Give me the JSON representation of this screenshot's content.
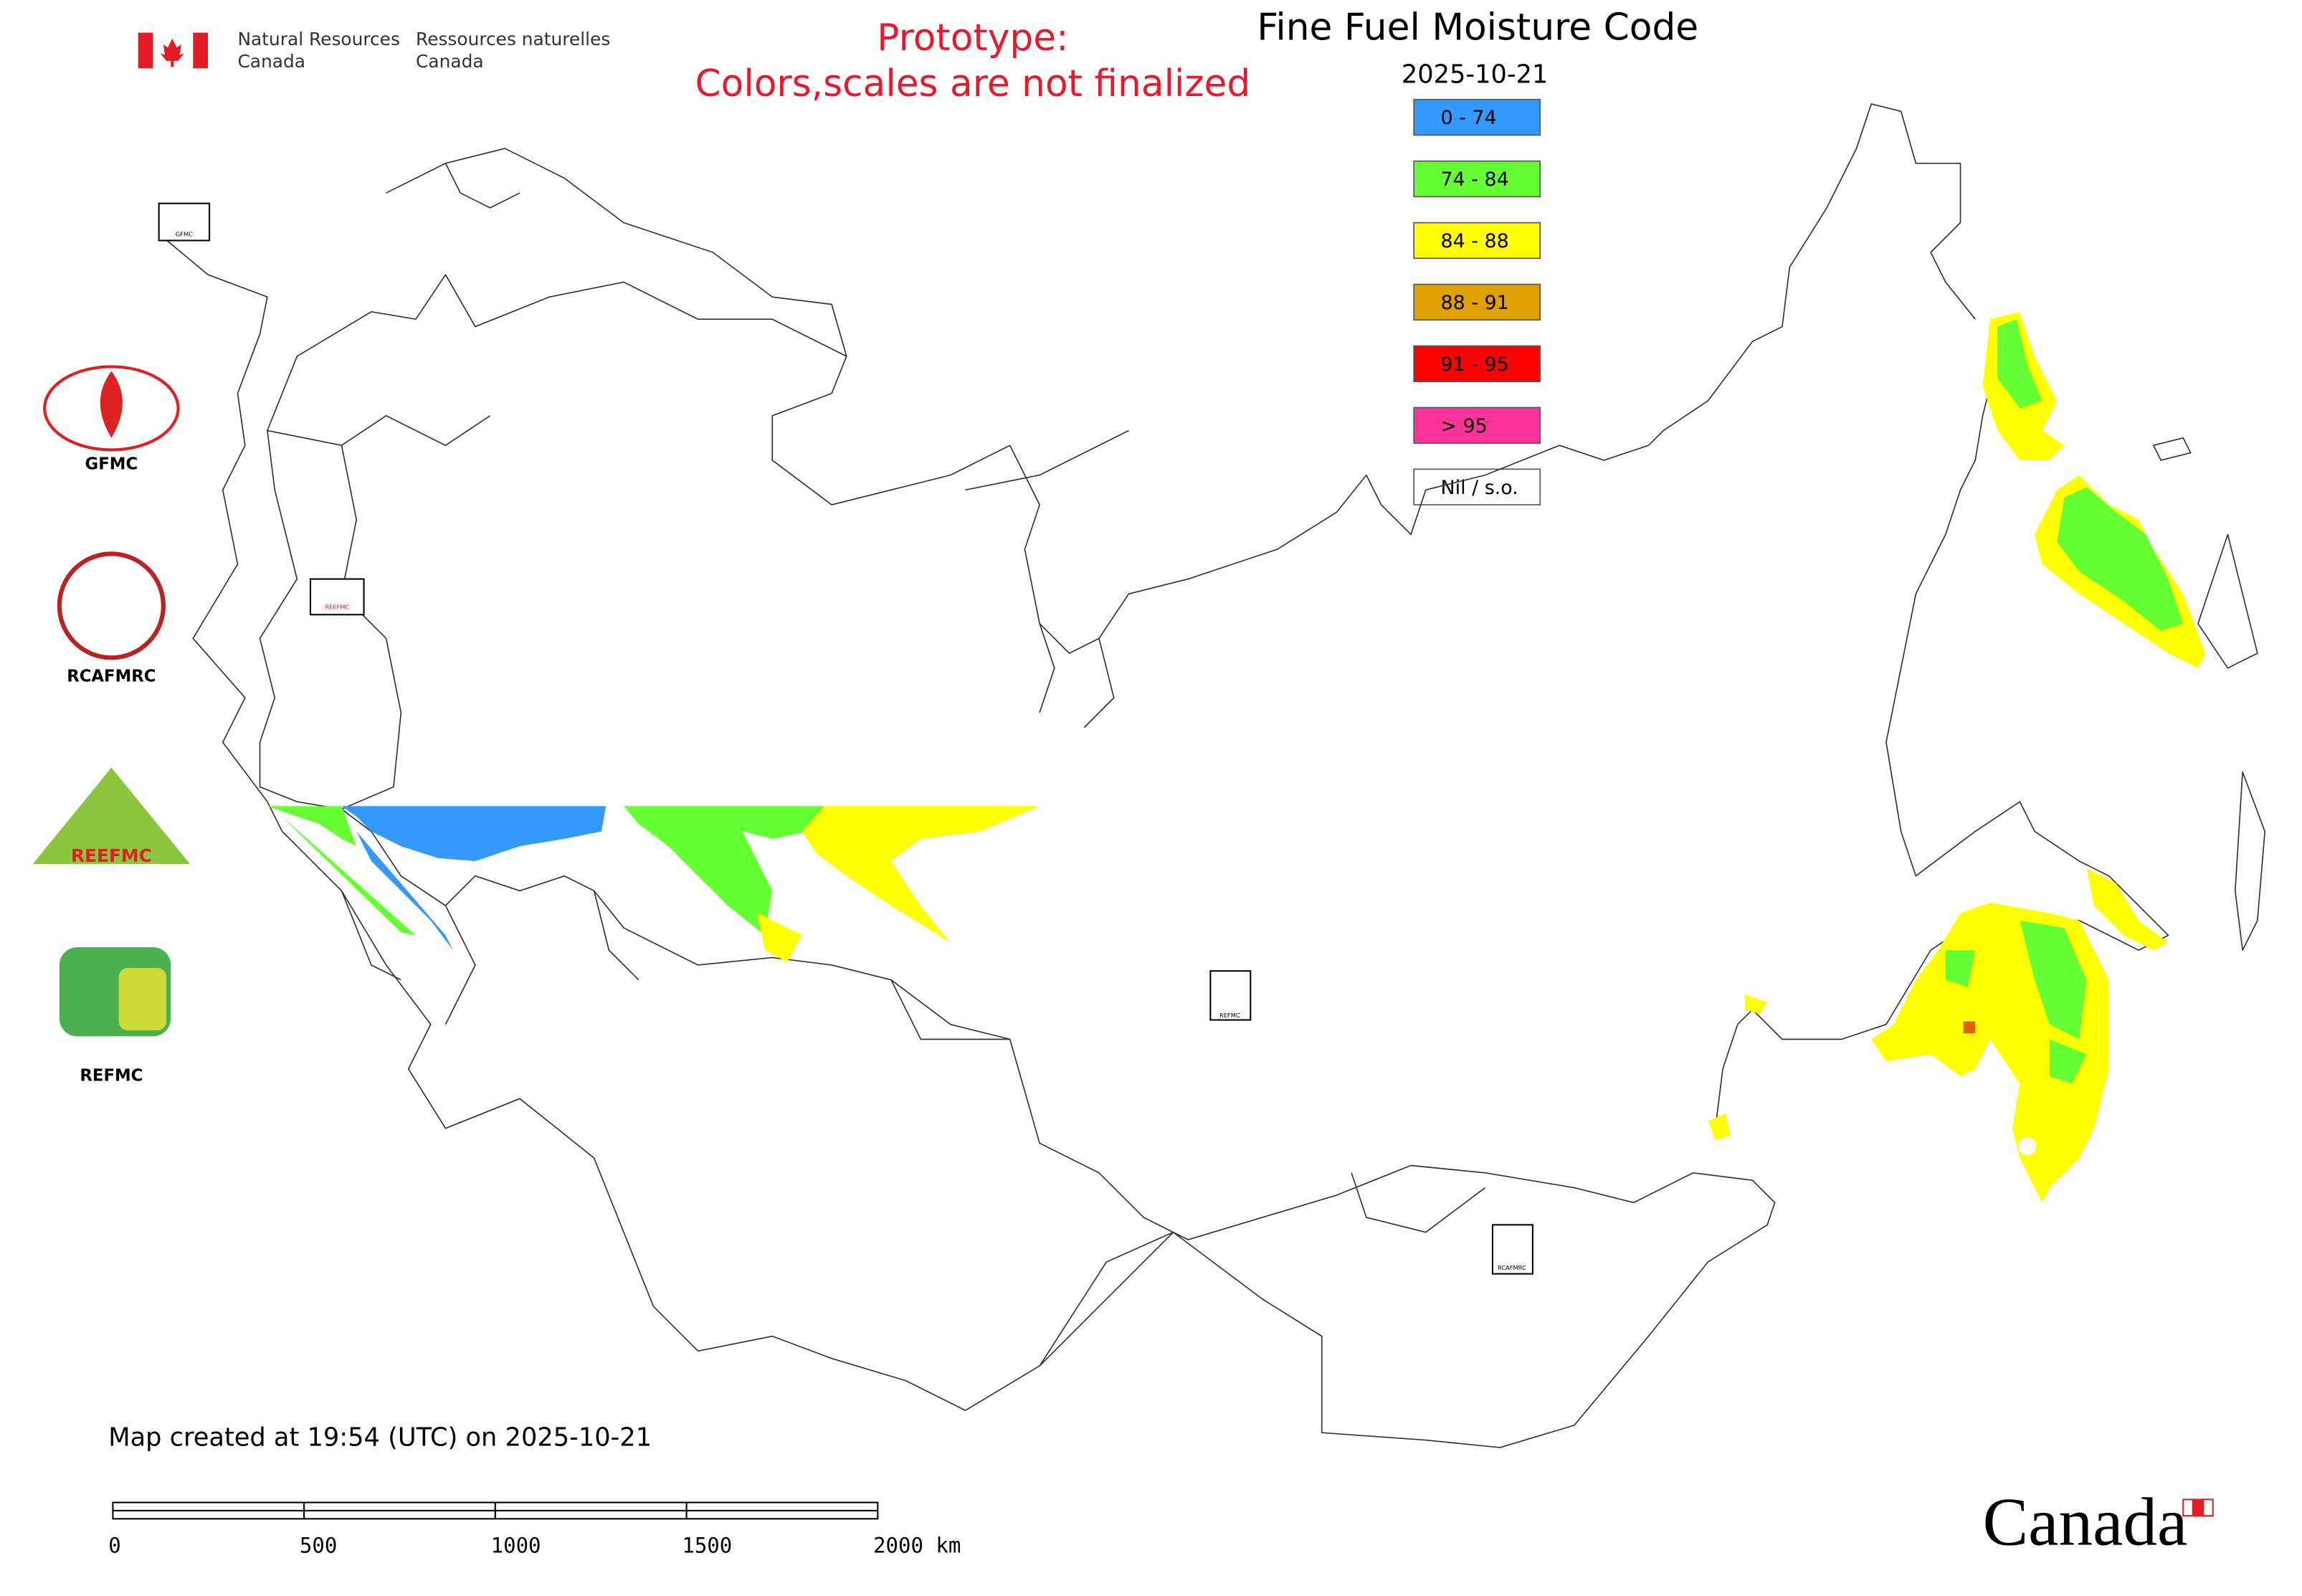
{
  "header": {
    "department_en": [
      "Natural Resources",
      "Canada"
    ],
    "department_fr": [
      "Ressources naturelles",
      "Canada"
    ],
    "notice": [
      "Prototype:",
      "Colors,scales are not finalized"
    ]
  },
  "map": {
    "title": "Fine Fuel Moisture Code",
    "date": "2025-10-21",
    "legend": [
      {
        "label": "0 - 74",
        "color": "#3399ff"
      },
      {
        "label": "74 - 84",
        "color": "#66ff33"
      },
      {
        "label": "84 - 88",
        "color": "#ffff00"
      },
      {
        "label": "88 - 91",
        "color": "#e0a000"
      },
      {
        "label": "91 - 95",
        "color": "#ff0000"
      },
      {
        "label": "> 95",
        "color": "#ff3399"
      },
      {
        "label": "Nil / s.o.",
        "color": "#ffffff"
      }
    ]
  },
  "logos": [
    "GFMC",
    "RCAFMRC",
    "REEFMC",
    "REFMC"
  ],
  "footer": {
    "created": "Map created at 19:54 (UTC) on 2025-10-21",
    "scale_bar": [
      "0",
      "500",
      "1000",
      "1500",
      "2000 km"
    ],
    "wordmark": "Canada"
  }
}
